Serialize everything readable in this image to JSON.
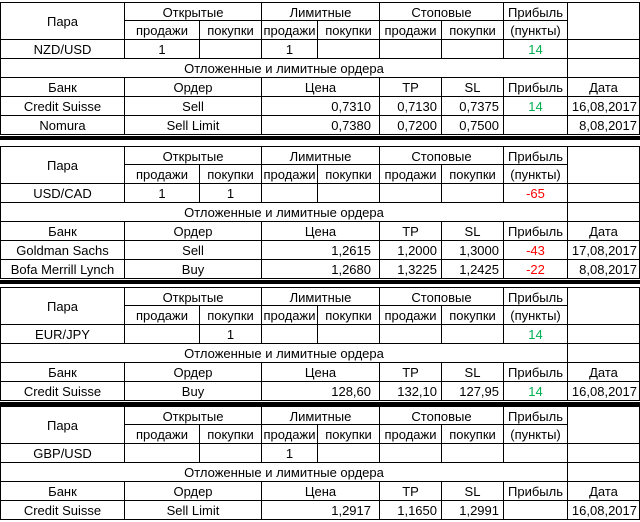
{
  "header": {
    "pair": "Пара",
    "open": "Открытые",
    "limit": "Лимитные",
    "stop": "Стоповые",
    "profit": "Прибыль",
    "sells": "продажи",
    "buys": "покупки",
    "points": "(пункты)"
  },
  "pending_title": "Отложенные и лимитные ордера",
  "orders_header": {
    "bank": "Банк",
    "order": "Ордер",
    "price": "Цена",
    "tp": "TP",
    "sl": "SL",
    "profit": "Прибыль",
    "date": "Дата"
  },
  "colors": {
    "positive": "#00b050",
    "negative": "#ff0000"
  },
  "blocks": [
    {
      "pair": "NZD/USD",
      "open_sells": "1",
      "open_buys": "",
      "limit_sells": "1",
      "limit_buys": "",
      "stop_sells": "",
      "stop_buys": "",
      "profit": "14",
      "profit_sign": "pos",
      "orders": [
        {
          "bank": "Credit Suisse",
          "order": "Sell",
          "price": "0,7310",
          "tp": "0,7130",
          "sl": "0,7375",
          "profit": "14",
          "profit_sign": "pos",
          "date": "16,08,2017"
        },
        {
          "bank": "Nomura",
          "order": "Sell Limit",
          "price": "0,7380",
          "tp": "0,7200",
          "sl": "0,7500",
          "profit": "",
          "profit_sign": "",
          "date": "8,08,2017"
        }
      ]
    },
    {
      "pair": "USD/CAD",
      "open_sells": "1",
      "open_buys": "1",
      "limit_sells": "",
      "limit_buys": "",
      "stop_sells": "",
      "stop_buys": "",
      "profit": "-65",
      "profit_sign": "neg",
      "orders": [
        {
          "bank": "Goldman Sachs",
          "order": "Sell",
          "price": "1,2615",
          "tp": "1,2000",
          "sl": "1,3000",
          "profit": "-43",
          "profit_sign": "neg",
          "date": "17,08,2017"
        },
        {
          "bank": "Bofa Merrill Lynch",
          "order": "Buy",
          "price": "1,2680",
          "tp": "1,3225",
          "sl": "1,2425",
          "profit": "-22",
          "profit_sign": "neg",
          "date": "8,08,2017"
        }
      ]
    },
    {
      "pair": "EUR/JPY",
      "open_sells": "",
      "open_buys": "1",
      "limit_sells": "",
      "limit_buys": "",
      "stop_sells": "",
      "stop_buys": "",
      "profit": "14",
      "profit_sign": "pos",
      "orders": [
        {
          "bank": "Credit Suisse",
          "order": "Buy",
          "price": "128,60",
          "tp": "132,10",
          "sl": "127,95",
          "profit": "14",
          "profit_sign": "pos",
          "date": "16,08,2017"
        }
      ]
    },
    {
      "pair": "GBP/USD",
      "open_sells": "",
      "open_buys": "",
      "limit_sells": "1",
      "limit_buys": "",
      "stop_sells": "",
      "stop_buys": "",
      "profit": "",
      "profit_sign": "",
      "orders": [
        {
          "bank": "Credit Suisse",
          "order": "Sell Limit",
          "price": "1,2917",
          "tp": "1,1650",
          "sl": "1,2991",
          "profit": "",
          "profit_sign": "",
          "date": "16,08,2017"
        }
      ]
    }
  ]
}
